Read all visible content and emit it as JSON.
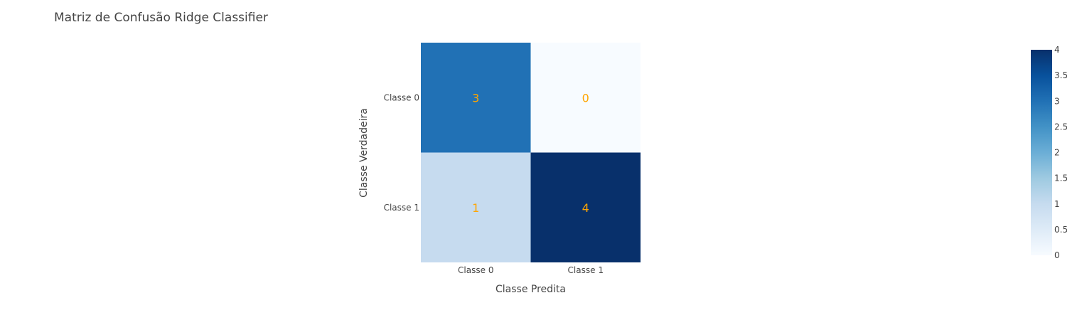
{
  "chart_data": {
    "type": "heatmap",
    "title": "Matriz de Confusão Ridge Classifier",
    "xlabel": "Classe Predita",
    "ylabel": "Classe Verdadeira",
    "x_categories": [
      "Classe 0",
      "Classe 1"
    ],
    "y_categories": [
      "Classe 0",
      "Classe 1"
    ],
    "values": [
      [
        3,
        0
      ],
      [
        1,
        4
      ]
    ],
    "text_color": "#ffa500",
    "colorscale": "Blues",
    "colorbar": {
      "range": [
        0,
        4
      ],
      "ticks": [
        0,
        0.5,
        1,
        1.5,
        2,
        2.5,
        3,
        3.5,
        4
      ],
      "tick_labels": [
        "0",
        "0.5",
        "1",
        "1.5",
        "2",
        "2.5",
        "3",
        "3.5",
        "4"
      ]
    }
  }
}
